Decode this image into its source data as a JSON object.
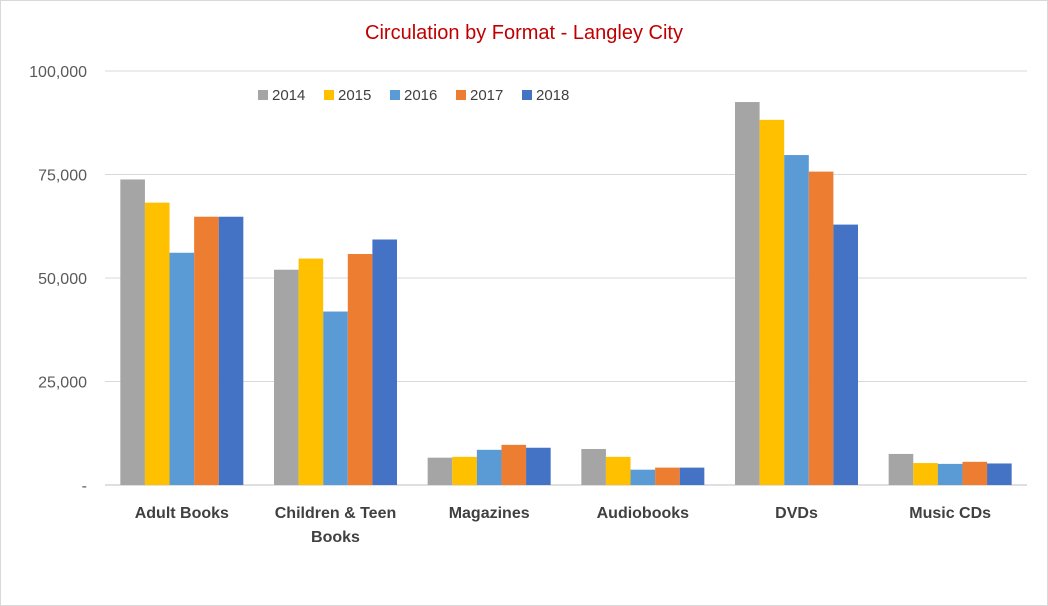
{
  "chart_data": {
    "type": "bar",
    "title": "Circulation by Format - Langley City",
    "xlabel": "",
    "ylabel": "",
    "ylim": [
      0,
      100000
    ],
    "yticks": [
      0,
      25000,
      50000,
      75000,
      100000
    ],
    "ytick_labels": [
      "-",
      "25,000",
      "50,000",
      "75,000",
      "100,000"
    ],
    "grid": true,
    "legend_position": "top-left",
    "categories": [
      [
        "Adult Books"
      ],
      [
        "Children & Teen",
        "Books"
      ],
      [
        "Magazines"
      ],
      [
        "Audiobooks"
      ],
      [
        "DVDs"
      ],
      [
        "Music CDs"
      ]
    ],
    "series": [
      {
        "name": "2014",
        "color": "#a5a5a5",
        "values": [
          73800,
          52000,
          6600,
          8700,
          92500,
          7500
        ]
      },
      {
        "name": "2015",
        "color": "#ffc000",
        "values": [
          68200,
          54700,
          6800,
          6800,
          88200,
          5300
        ]
      },
      {
        "name": "2016",
        "color": "#5b9bd5",
        "values": [
          56100,
          41900,
          8500,
          3700,
          79700,
          5100
        ]
      },
      {
        "name": "2017",
        "color": "#ed7d31",
        "values": [
          64800,
          55800,
          9700,
          4200,
          75700,
          5600
        ]
      },
      {
        "name": "2018",
        "color": "#4472c4",
        "values": [
          64800,
          59300,
          9000,
          4200,
          62900,
          5200
        ]
      }
    ]
  }
}
